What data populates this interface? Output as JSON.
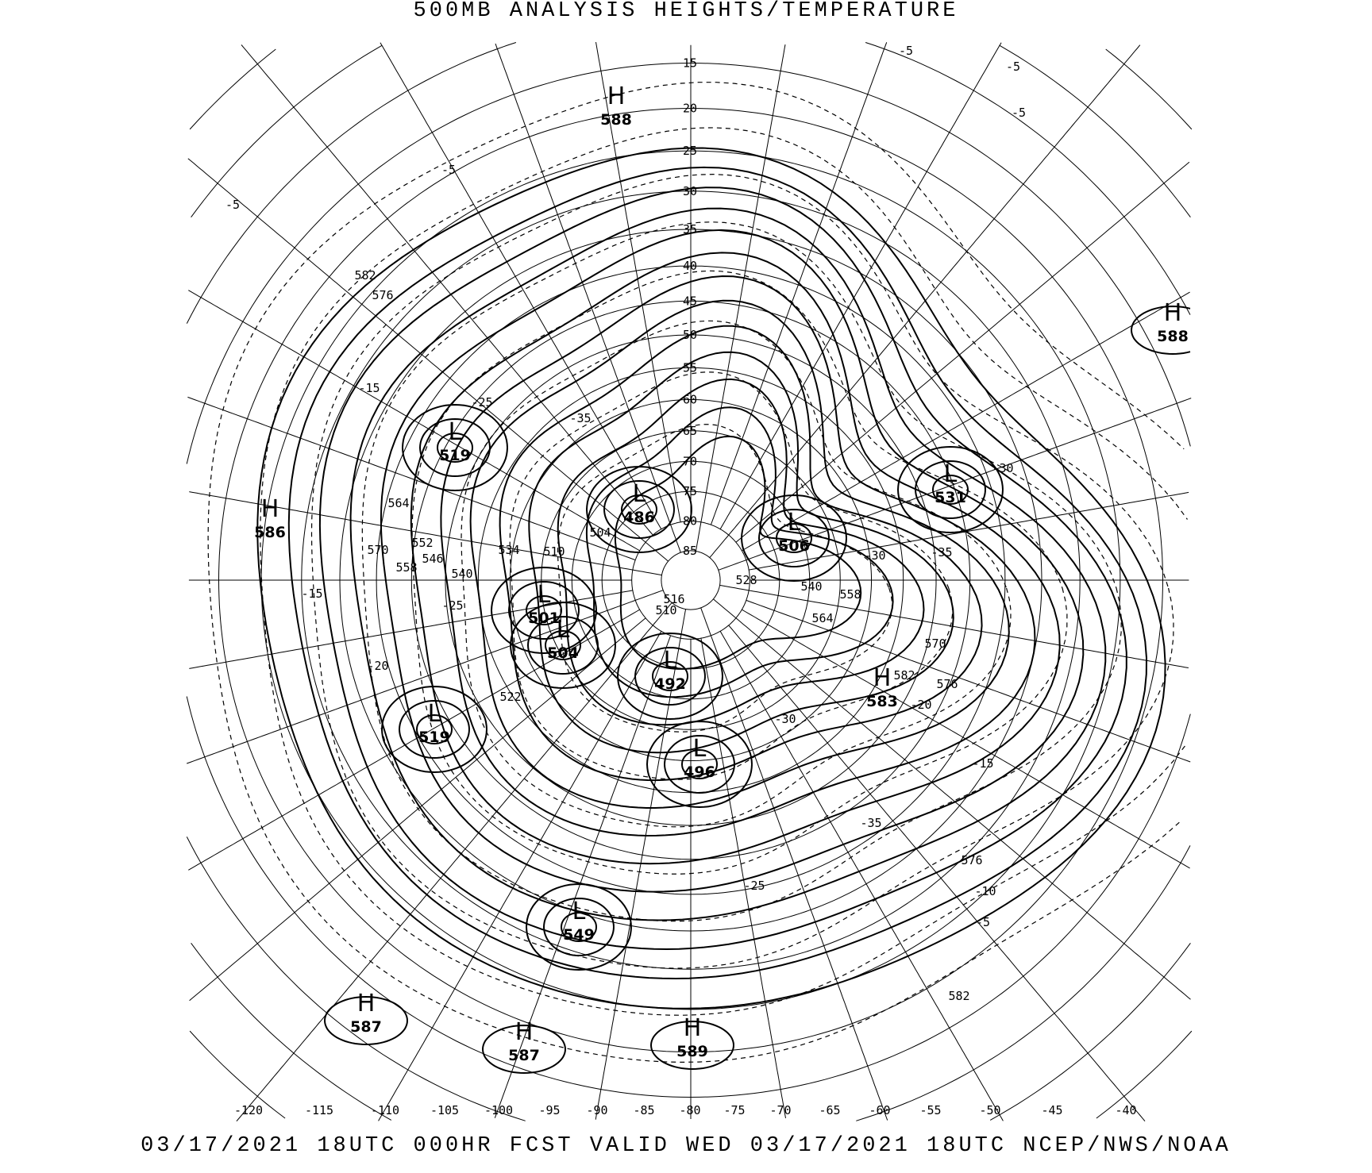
{
  "header": {
    "title": "500MB ANALYSIS  HEIGHTS/TEMPERATURE"
  },
  "footer": {
    "valid_line": "03/17/2021 18UTC 000HR FCST VALID WED 03/17/2021 18UTC  NCEP/NWS/NOAA"
  },
  "map": {
    "projection": "polar stereographic",
    "height_units": "dam",
    "temperature_units": "C",
    "latitude_labels": [
      "15",
      "20",
      "25",
      "30",
      "35",
      "40",
      "45",
      "50",
      "55",
      "60",
      "65",
      "70",
      "75",
      "80",
      "85"
    ],
    "longitude_labels": [
      "-120",
      "-115",
      "-110",
      "-105",
      "-100",
      "-95",
      "-90",
      "-85",
      "-80",
      "-75",
      "-70",
      "-65",
      "-60",
      "-55",
      "-50",
      "-45",
      "-40"
    ],
    "centers": [
      {
        "type": "H",
        "value": "588"
      },
      {
        "type": "H",
        "value": "588"
      },
      {
        "type": "H",
        "value": "586"
      },
      {
        "type": "L",
        "value": "519"
      },
      {
        "type": "L",
        "value": "486"
      },
      {
        "type": "L",
        "value": "506"
      },
      {
        "type": "L",
        "value": "531"
      },
      {
        "type": "L",
        "value": "501"
      },
      {
        "type": "L",
        "value": "504"
      },
      {
        "type": "L",
        "value": "492"
      },
      {
        "type": "L",
        "value": "519"
      },
      {
        "type": "L",
        "value": "496"
      },
      {
        "type": "H",
        "value": "583"
      },
      {
        "type": "L",
        "value": "549"
      },
      {
        "type": "H",
        "value": "587"
      },
      {
        "type": "H",
        "value": "587"
      },
      {
        "type": "H",
        "value": "589"
      }
    ],
    "height_labels": [
      "582",
      "576",
      "564",
      "570",
      "552",
      "558",
      "546",
      "540",
      "534",
      "510",
      "504",
      "528",
      "516",
      "510",
      "540",
      "558",
      "564",
      "570",
      "576",
      "582",
      "576",
      "582",
      "522"
    ],
    "temperature_labels": [
      "-5",
      "-5",
      "-15",
      "-15",
      "-25",
      "-35",
      "-25",
      "-20",
      "-30",
      "-15",
      "-10",
      "-5",
      "-20",
      "-30",
      "-35",
      "-25",
      "-35",
      "-30",
      "-5",
      "-5",
      "-5"
    ]
  }
}
